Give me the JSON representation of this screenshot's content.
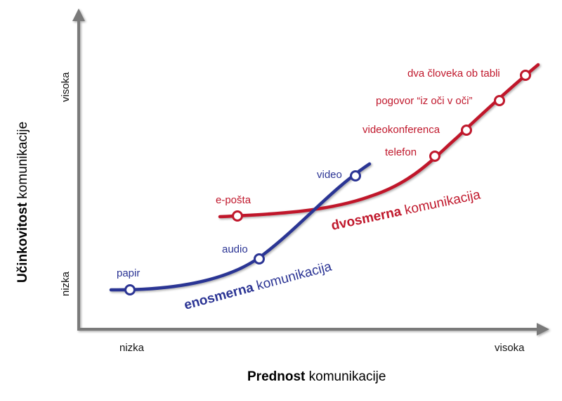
{
  "axes": {
    "x_title_bold": "Prednost",
    "x_title_rest": " komunikacije",
    "y_title_bold": "Učinkovitost",
    "y_title_rest": " komunikacije",
    "x_low": "nizka",
    "x_high": "visoka",
    "y_low": "nizka",
    "y_high": "visoka"
  },
  "curves": {
    "one_way": {
      "name_bold": "enosmerna",
      "name_rest": " komunikacija",
      "color": "#2b3494",
      "points": [
        "papir",
        "audio",
        "video"
      ]
    },
    "two_way": {
      "name_bold": "dvosmerna",
      "name_rest": " komunikacija",
      "color": "#c0182c",
      "points": [
        "e-pošta",
        "telefon",
        "videokonferenca",
        "pogovor “iz oči v oči”",
        "dva človeka ob tabli"
      ]
    }
  },
  "colors": {
    "axis": "#7a7a7a",
    "one_way": "#2b3494",
    "two_way": "#c0182c"
  }
}
